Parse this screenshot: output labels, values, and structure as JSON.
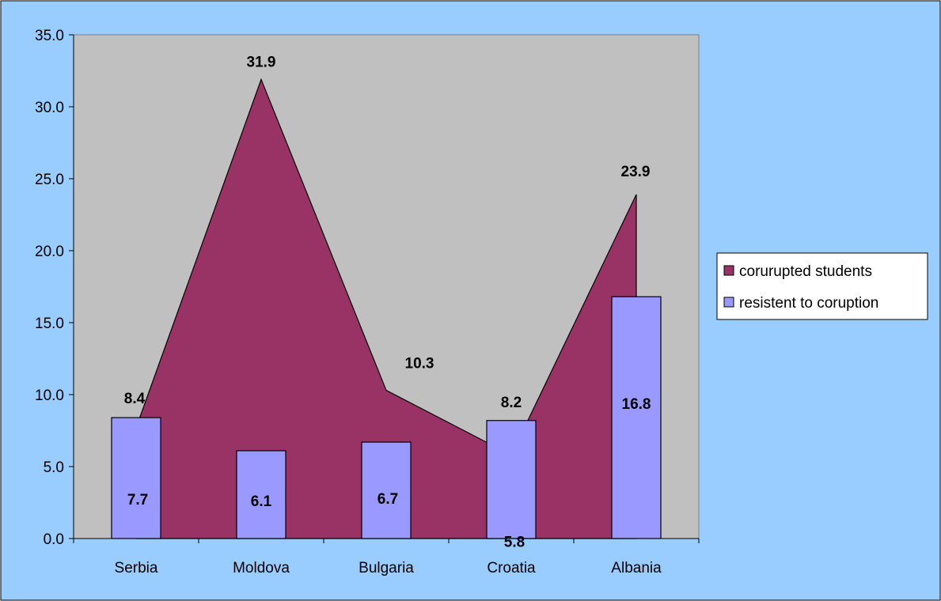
{
  "chart_data": {
    "type": "bar",
    "categories": [
      "Serbia",
      "Moldova",
      "Bulgaria",
      "Croatia",
      "Albania"
    ],
    "series": [
      {
        "name": "corurupted students",
        "type": "area",
        "values": [
          7.7,
          31.9,
          10.3,
          5.8,
          23.9
        ],
        "value_labels": [
          "7.7",
          "31.9",
          "10.3",
          "5.8",
          "23.9"
        ],
        "color": "#993366"
      },
      {
        "name": "resistent to coruption",
        "type": "bar",
        "values": [
          8.4,
          6.1,
          6.7,
          8.2,
          16.8
        ],
        "value_labels": [
          "8.4",
          "6.1",
          "6.7",
          "8.2",
          "16.8"
        ],
        "color": "#9999FF"
      }
    ],
    "y_ticks": [
      "0.0",
      "5.0",
      "10.0",
      "15.0",
      "20.0",
      "25.0",
      "30.0",
      "35.0"
    ],
    "ylim": [
      0,
      35
    ],
    "grid": false,
    "legend_position": "right",
    "colors": {
      "background": "#99CCFF",
      "plot_area": "#C0C0C0"
    }
  }
}
